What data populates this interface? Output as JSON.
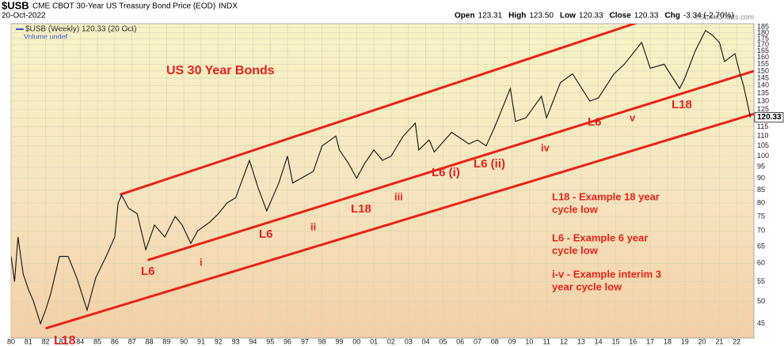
{
  "header": {
    "symbol": "$USB",
    "description": "CME CBOT 30-Year US Treasury Bond Price (EOD)",
    "exchange": "INDX",
    "date": "20-Oct-2022",
    "stats": [
      {
        "label": "Open",
        "value": "123.31"
      },
      {
        "label": "High",
        "value": "123.50"
      },
      {
        "label": "Low",
        "value": "120.33"
      },
      {
        "label": "Close",
        "value": "120.33"
      },
      {
        "label": "Chg",
        "value": "-3.34 (-2.70%)"
      }
    ],
    "copyright": "©StockCharts.com"
  },
  "chart_data": {
    "type": "line",
    "log_scale": true,
    "grid": true,
    "legend": [
      "$USB (Weekly) 120.33 (20 Oct)",
      "Volume undef"
    ],
    "price_label": "120.33",
    "xlim": [
      1980,
      2023
    ],
    "ylim": [
      42,
      188
    ],
    "xticks": [
      {
        "value": 1980,
        "label": "80"
      },
      {
        "value": 1981,
        "label": "81"
      },
      {
        "value": 1982,
        "label": "82"
      },
      {
        "value": 1983,
        "label": "83"
      },
      {
        "value": 1984,
        "label": "84"
      },
      {
        "value": 1985,
        "label": "85"
      },
      {
        "value": 1986,
        "label": "86"
      },
      {
        "value": 1987,
        "label": "87"
      },
      {
        "value": 1988,
        "label": "88"
      },
      {
        "value": 1989,
        "label": "89"
      },
      {
        "value": 1990,
        "label": "90"
      },
      {
        "value": 1991,
        "label": "91"
      },
      {
        "value": 1992,
        "label": "92"
      },
      {
        "value": 1993,
        "label": "93"
      },
      {
        "value": 1994,
        "label": "94"
      },
      {
        "value": 1995,
        "label": "95"
      },
      {
        "value": 1996,
        "label": "96"
      },
      {
        "value": 1997,
        "label": "97"
      },
      {
        "value": 1998,
        "label": "98"
      },
      {
        "value": 1999,
        "label": "99"
      },
      {
        "value": 2000,
        "label": "00"
      },
      {
        "value": 2001,
        "label": "01"
      },
      {
        "value": 2002,
        "label": "02"
      },
      {
        "value": 2003,
        "label": "03"
      },
      {
        "value": 2004,
        "label": "04"
      },
      {
        "value": 2005,
        "label": "05"
      },
      {
        "value": 2006,
        "label": "06"
      },
      {
        "value": 2007,
        "label": "07"
      },
      {
        "value": 2008,
        "label": "08"
      },
      {
        "value": 2009,
        "label": "09"
      },
      {
        "value": 2010,
        "label": "10"
      },
      {
        "value": 2011,
        "label": "11"
      },
      {
        "value": 2012,
        "label": "12"
      },
      {
        "value": 2013,
        "label": "13"
      },
      {
        "value": 2014,
        "label": "14"
      },
      {
        "value": 2015,
        "label": "15"
      },
      {
        "value": 2016,
        "label": "16"
      },
      {
        "value": 2017,
        "label": "17"
      },
      {
        "value": 2018,
        "label": "18"
      },
      {
        "value": 2019,
        "label": "19"
      },
      {
        "value": 2020,
        "label": "20"
      },
      {
        "value": 2021,
        "label": "21"
      },
      {
        "value": 2022,
        "label": "22"
      }
    ],
    "yticks": [
      45,
      50,
      55,
      60,
      65,
      70,
      75,
      80,
      85,
      90,
      95,
      100,
      105,
      110,
      115,
      120,
      125,
      130,
      135,
      140,
      145,
      150,
      155,
      160,
      165,
      170,
      175,
      180,
      185
    ],
    "series": [
      {
        "name": "$USB",
        "color": "#111111",
        "x": [
          1980.0,
          1980.2,
          1980.4,
          1980.7,
          1981.0,
          1981.3,
          1981.7,
          1982.0,
          1982.3,
          1982.8,
          1983.3,
          1983.8,
          1984.4,
          1984.9,
          1985.5,
          1986.0,
          1986.2,
          1986.4,
          1986.8,
          1987.3,
          1987.8,
          1988.3,
          1988.9,
          1989.5,
          1989.9,
          1990.4,
          1990.8,
          1991.5,
          1992.0,
          1992.5,
          1993.0,
          1993.8,
          1994.3,
          1994.8,
          1995.5,
          1996.0,
          1996.3,
          1996.8,
          1997.5,
          1998.0,
          1998.8,
          1999.0,
          1999.5,
          2000.0,
          2000.5,
          2001.0,
          2001.5,
          2002.0,
          2002.7,
          2003.4,
          2003.6,
          2004.2,
          2004.5,
          2005.5,
          2006.5,
          2007.0,
          2007.5,
          2008.0,
          2008.9,
          2009.2,
          2009.8,
          2010.7,
          2011.0,
          2011.8,
          2012.5,
          2013.5,
          2014.0,
          2014.9,
          2015.5,
          2016.5,
          2017.0,
          2017.8,
          2018.7,
          2019.0,
          2019.6,
          2020.2,
          2020.6,
          2021.0,
          2021.3,
          2021.9,
          2022.2,
          2022.4,
          2022.8
        ],
        "values": [
          62,
          55,
          68,
          57,
          53,
          50,
          45,
          48,
          52,
          62,
          62,
          56,
          48,
          56,
          62,
          68,
          80,
          83,
          78,
          76,
          64,
          72,
          68,
          75,
          72,
          66,
          70,
          73,
          76,
          80,
          82,
          98,
          86,
          77,
          88,
          100,
          88,
          90,
          93,
          105,
          110,
          103,
          97,
          90,
          97,
          103,
          98,
          100,
          110,
          117,
          103,
          108,
          102,
          112,
          106,
          108,
          105,
          115,
          138,
          118,
          120,
          133,
          120,
          142,
          148,
          130,
          132,
          148,
          155,
          172,
          152,
          155,
          138,
          145,
          165,
          182,
          178,
          172,
          157,
          163,
          148,
          140,
          120.33
        ]
      }
    ],
    "channels": [
      {
        "color": "#e8231b",
        "x": [
          1986.3,
          2017.4
        ],
        "y": [
          83.2,
          195
        ]
      },
      {
        "color": "#e8231b",
        "x": [
          1987.9,
          2023.0
        ],
        "y": [
          60.9,
          150
        ]
      },
      {
        "color": "#e8231b",
        "x": [
          1982.0,
          2023.0
        ],
        "y": [
          44,
          122.3
        ]
      }
    ],
    "annotations": [
      "US 30 Year Bonds",
      "L18",
      "L6",
      "i",
      "L6",
      "ii",
      "L18",
      "iii",
      "L6 (i)",
      "L6 (ii)",
      "iv",
      "L6",
      "v",
      "L18",
      "L18 - Example 18 year",
      "cycle low",
      "L6 - Example 6 year",
      "cycle low",
      "i-v - Example interim 3",
      "year cycle low"
    ]
  }
}
